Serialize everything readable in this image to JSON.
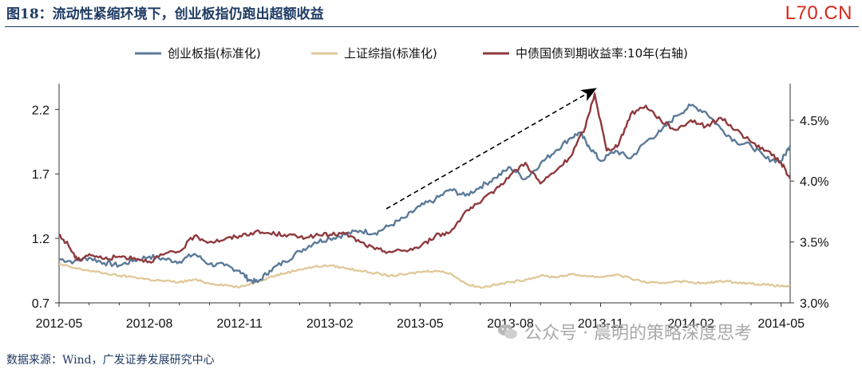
{
  "header": {
    "title": "图18：流动性紧缩环境下，创业板指仍跑出超额收益",
    "brand": "L70.CN"
  },
  "footer": {
    "source": "数据来源：Wind，广发证券发展研究中心",
    "watermark": "公众号 · 晨明的策略深度思考"
  },
  "colors": {
    "gem": "#5b7a99",
    "sse": "#e0c99b",
    "bond": "#8f3a3e",
    "arrow": "#000000"
  },
  "chart_data": {
    "type": "line",
    "title": "",
    "x_ticks": [
      "2012-05",
      "2012-08",
      "2012-11",
      "2013-02",
      "2013-05",
      "2013-08",
      "2013-11",
      "2014-02",
      "2014-05"
    ],
    "x_range": [
      "2012-05",
      "2014-05.3"
    ],
    "y_left": {
      "range": [
        0.7,
        2.4
      ],
      "ticks": [
        "0.7",
        "1.2",
        "1.7",
        "2.2"
      ]
    },
    "y_right": {
      "range": [
        3.0,
        4.8
      ],
      "ticks": [
        "3.0%",
        "3.5%",
        "4.0%",
        "4.5%"
      ]
    },
    "grid": false,
    "legend_position": "top",
    "annotation": "dashed upward arrow from 2013-04 to 2013-11",
    "series": [
      {
        "name": "创业板指(标准化)",
        "axis": "left",
        "x": [
          0,
          0.5,
          1,
          1.5,
          2,
          2.5,
          3,
          3.5,
          4,
          4.5,
          5,
          5.5,
          6,
          6.3,
          6.6,
          7,
          7.5,
          8,
          8.5,
          9,
          9.5,
          10,
          10.5,
          11,
          11.5,
          12,
          12.5,
          13,
          13.5,
          14,
          14.5,
          15,
          15.5,
          16,
          16.5,
          17,
          17.3,
          17.6,
          18,
          18.5,
          19,
          19.5,
          20,
          20.5,
          21,
          21.5,
          22,
          22.5,
          23,
          23.5,
          24,
          24.3
        ],
        "values": [
          1.04,
          1.02,
          1.05,
          1.01,
          0.99,
          1.03,
          1.06,
          1.04,
          1.02,
          1.08,
          1.0,
          0.99,
          0.95,
          0.88,
          0.86,
          0.95,
          1.02,
          1.1,
          1.17,
          1.2,
          1.23,
          1.26,
          1.24,
          1.3,
          1.36,
          1.45,
          1.5,
          1.58,
          1.53,
          1.6,
          1.67,
          1.75,
          1.66,
          1.78,
          1.88,
          1.98,
          2.02,
          1.92,
          1.8,
          1.88,
          1.82,
          1.95,
          2.03,
          2.15,
          2.23,
          2.18,
          2.05,
          1.95,
          1.92,
          1.82,
          1.8,
          1.92
        ]
      },
      {
        "name": "上证综指(标准化)",
        "axis": "left",
        "x": [
          0,
          0.5,
          1,
          1.5,
          2,
          2.5,
          3,
          3.5,
          4,
          4.5,
          5,
          5.5,
          6,
          6.5,
          7,
          7.5,
          8,
          8.5,
          9,
          9.5,
          10,
          10.5,
          11,
          11.5,
          12,
          12.5,
          13,
          13.5,
          14,
          14.5,
          15,
          15.5,
          16,
          16.5,
          17,
          17.5,
          18,
          18.5,
          19,
          19.5,
          20,
          20.5,
          21,
          21.5,
          22,
          22.5,
          23,
          23.5,
          24,
          24.3
        ],
        "values": [
          1.0,
          0.97,
          0.95,
          0.93,
          0.91,
          0.9,
          0.88,
          0.87,
          0.86,
          0.88,
          0.85,
          0.84,
          0.82,
          0.86,
          0.9,
          0.93,
          0.96,
          0.98,
          0.99,
          0.97,
          0.95,
          0.93,
          0.91,
          0.92,
          0.94,
          0.95,
          0.93,
          0.85,
          0.82,
          0.84,
          0.86,
          0.88,
          0.91,
          0.9,
          0.92,
          0.91,
          0.9,
          0.92,
          0.89,
          0.86,
          0.85,
          0.87,
          0.86,
          0.85,
          0.87,
          0.86,
          0.85,
          0.84,
          0.83,
          0.83
        ]
      },
      {
        "name": "中债国债到期收益率:10年(右轴)",
        "axis": "right",
        "x": [
          0,
          0.3,
          0.6,
          1,
          1.5,
          2,
          2.5,
          3,
          3.5,
          4,
          4.5,
          5,
          5.5,
          6,
          6.5,
          7,
          7.5,
          8,
          8.5,
          9,
          9.5,
          10,
          10.5,
          11,
          11.5,
          12,
          12.5,
          13,
          13.5,
          14,
          14.5,
          15,
          15.5,
          16,
          16.5,
          17,
          17.5,
          17.8,
          18.2,
          18.6,
          19,
          19.5,
          20,
          20.5,
          21,
          21.5,
          22,
          22.5,
          23,
          23.5,
          24,
          24.3
        ],
        "values": [
          3.55,
          3.48,
          3.35,
          3.4,
          3.36,
          3.38,
          3.37,
          3.34,
          3.4,
          3.42,
          3.55,
          3.5,
          3.52,
          3.55,
          3.58,
          3.57,
          3.56,
          3.54,
          3.55,
          3.56,
          3.57,
          3.5,
          3.44,
          3.42,
          3.43,
          3.46,
          3.55,
          3.58,
          3.75,
          3.82,
          3.93,
          4.05,
          4.15,
          3.98,
          4.08,
          4.2,
          4.45,
          4.72,
          4.25,
          4.3,
          4.55,
          4.62,
          4.5,
          4.42,
          4.5,
          4.45,
          4.52,
          4.42,
          4.32,
          4.25,
          4.15,
          4.02
        ]
      }
    ]
  }
}
